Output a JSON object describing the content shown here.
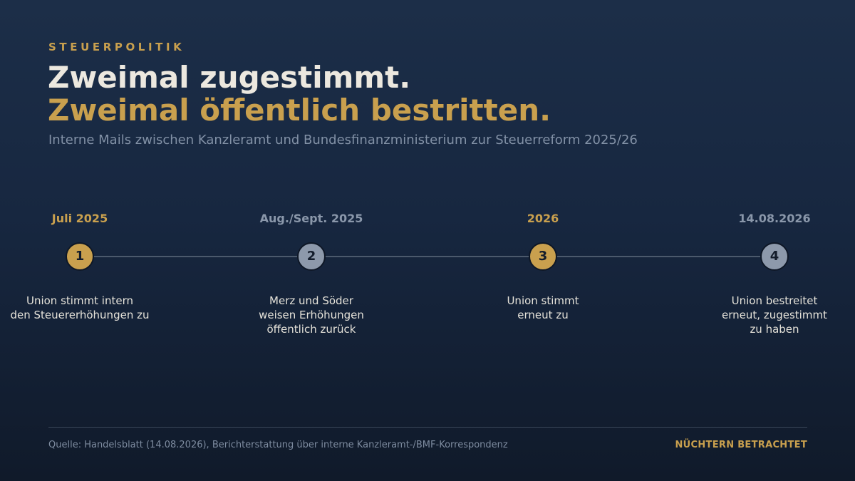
{
  "eyebrow": "STEUERPOLITIK",
  "headline": {
    "line1": "Zweimal zugestimmt.",
    "line2": "Zweimal öffentlich bestritten."
  },
  "subtitle": "Interne Mails zwischen Kanzleramt und Bundesfinanzministerium zur Steuerreform 2025/26",
  "timeline": {
    "steps": [
      {
        "number": "1",
        "date": "Juli 2025",
        "description": [
          "Union stimmt intern",
          "den Steuererhöhungen zu"
        ],
        "color": "#c9a04e"
      },
      {
        "number": "2",
        "date": "Aug./Sept. 2025",
        "description": [
          "Merz und Söder",
          "weisen Erhöhungen",
          "öffentlich zurück"
        ],
        "color": "#8d99ab"
      },
      {
        "number": "3",
        "date": "2026",
        "description": [
          "Union stimmt",
          "erneut zu"
        ],
        "color": "#c9a04e"
      },
      {
        "number": "4",
        "date": "14.08.2026",
        "description": [
          "Union bestreitet",
          "erneut, zugestimmt",
          "zu haben"
        ],
        "color": "#8d99ab"
      }
    ]
  },
  "footer": {
    "source": "Quelle: Handelsblatt (14.08.2026), Berichterstattung über interne Kanzleramt-/BMF-Korrespondenz",
    "brand": "NÜCHTERN BETRACHTET"
  },
  "colors": {
    "accent": "#c9a04e",
    "muted": "#8d99ab",
    "background": "#172740"
  }
}
